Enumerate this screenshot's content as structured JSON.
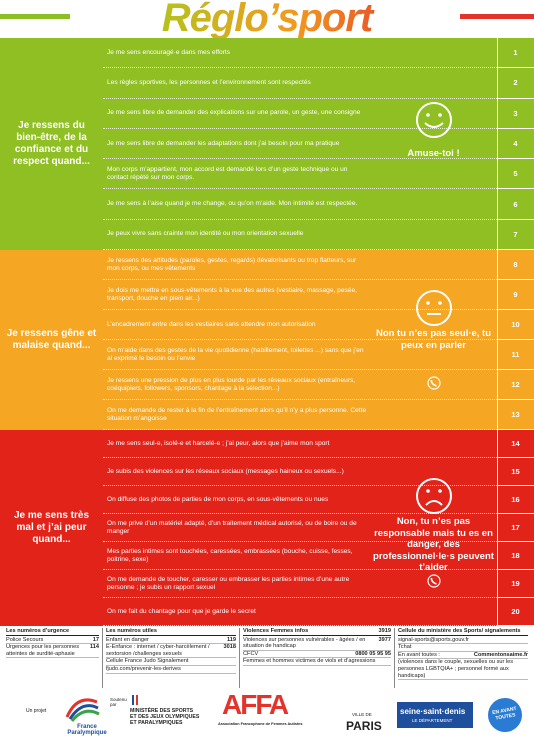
{
  "header": {
    "title": "Réglo’sport"
  },
  "sections": [
    {
      "label": "Je ressens du bien-être, de la confiance et du respect quand...",
      "message": "Amuse-toi !",
      "rows": [
        {
          "number": "1",
          "text": "Je me sens encouragé·e dans mes efforts"
        },
        {
          "number": "2",
          "text": "Les règles sportives, les personnes et l’environnement sont respectés"
        },
        {
          "number": "3",
          "text": "Je me sens libre de demander des explications sur une parole, un geste, une consigne"
        },
        {
          "number": "4",
          "text": "Je me sens libre de demander les adaptations dont j’ai besoin pour ma pratique"
        },
        {
          "number": "5",
          "text": "Mon corps m’appartient, mon accord est demandé lors d’un geste technique ou un contact répété sur mon corps."
        },
        {
          "number": "6",
          "text": "Je me sens à l’aise quand je me change, ou qu’on m’aide. Mon intimité est respectée."
        },
        {
          "number": "7",
          "text": "Je peux vivre sans crainte mon identité ou mon orientation sexuelle"
        }
      ]
    },
    {
      "label": "Je ressens gêne et malaise quand...",
      "message": "Non tu n’es pas seul·e, tu peux en parler",
      "rows": [
        {
          "number": "8",
          "text": "Je ressens des attitudes (paroles, gestes, regards) dévalorisants ou trop flatteurs, sur mon corps, ou mes vêtements"
        },
        {
          "number": "9",
          "text": "Je dois me mettre en sous-vêtements à la vue des autres (vestiaire, massage, pesée, transport, douche en plein air...)"
        },
        {
          "number": "10",
          "text": "L’encadrement entre dans les vestiaires sans attendre mon autorisation"
        },
        {
          "number": "11",
          "text": "On m’aide dans des gestes de la vie quotidienne (habillement, toilettes ...) sans que j’en ai exprimé le besoin ou l’envie"
        },
        {
          "number": "12",
          "text": "Je ressens une pression de plus en plus lourde par les réseaux sociaux (entraîneurs, coéquipiers, followers, sponsors, chantage à la sélection...)"
        },
        {
          "number": "13",
          "text": "On me demande de rester à la fin de l’entraînement alors qu’il n’y a plus personne. Cette situation m’angoisse"
        }
      ]
    },
    {
      "label": "Je me sens très mal et j’ai peur quand...",
      "message": "Non, tu n’es pas responsable mais tu es en danger, des professionnel·le·s peuvent t’aider",
      "rows": [
        {
          "number": "14",
          "text": "Je me sens seul-e, isolé-e et harcelé-e ; j’ai peur, alors que j’aime mon sport"
        },
        {
          "number": "15",
          "text": "Je subis des violences sur les réseaux sociaux (messages haineux ou sexuels...)"
        },
        {
          "number": "16",
          "text": "On diffuse des photos de parties de mon corps, en sous-vêtements ou nues"
        },
        {
          "number": "17",
          "text": "On me prive d’un matériel adapté, d’un traitement médical autorisé, ou de boire ou de manger"
        },
        {
          "number": "18",
          "text": "Mes parties intimes sont touchées, caressées, embrassées (bouche, cuisse, fesses, poitrine, sexe)"
        },
        {
          "number": "19",
          "text": "On me demande de toucher, caresser ou embrasser les parties intimes d’une autre personne ; je subis un rapport sexuel"
        },
        {
          "number": "20",
          "text": "On me fait du chantage pour que je garde le secret"
        }
      ]
    }
  ],
  "footer": {
    "columns": [
      {
        "title": "Les numéros d’urgence",
        "items": [
          {
            "label": "Police Secours",
            "value": "17"
          },
          {
            "label": "Urgences pour les personnes atteintes de surdité-aphasie",
            "value": "114"
          }
        ]
      },
      {
        "title": "Les numéros utiles",
        "items": [
          {
            "label": "Enfant en danger",
            "value": "119"
          },
          {
            "label": "E-Enfance : internet / cyber-harcèlement / sextorsion /challenges sexuels",
            "value": "3018"
          },
          {
            "label": "Cellule France Judo Signalement"
          },
          {
            "label": "fjudo.com/prevenir-les-derives"
          }
        ]
      },
      {
        "title": "Violences Femmes infos",
        "title_value": "3919",
        "items": [
          {
            "label": "Violences sur personnes vulnérables - âgées / en situation de handicap",
            "value": "3977"
          },
          {
            "label": "CFCV",
            "value": "0800 05 95 95"
          },
          {
            "label": "Femmes et hommes victimes de viols et d’agressions"
          }
        ]
      },
      {
        "title": "Cellule du ministère des Sports/ signalements",
        "items": [
          {
            "label": "signal-sports@sports.gouv.fr"
          },
          {
            "label": "Tchat"
          },
          {
            "label": "En avant toutes :",
            "value": "Commentonsaime.fr"
          },
          {
            "label": "(violences dans le couple, sexuelles ou sur les personnes LGBTQIA+ ; personnel formé aux handicaps)"
          }
        ]
      }
    ],
    "logos": {
      "project": "Un projet",
      "paralympic": "France Paralympique",
      "support": "Soutenu par",
      "ministry": "MINISTÈRE DES SPORTS ET DES JEUX OLYMPIQUES ET PARALYMPIQUES",
      "affa": "AFFA",
      "affa_sub": "Association Francophone de Femmes Autistes",
      "paris_sub": "VILLE DE",
      "paris": "PARIS",
      "ssd": "seine·saint·denis",
      "ssd_sub": "LE DÉPARTEMENT",
      "eat": "EN AVANT TOUTES"
    }
  }
}
